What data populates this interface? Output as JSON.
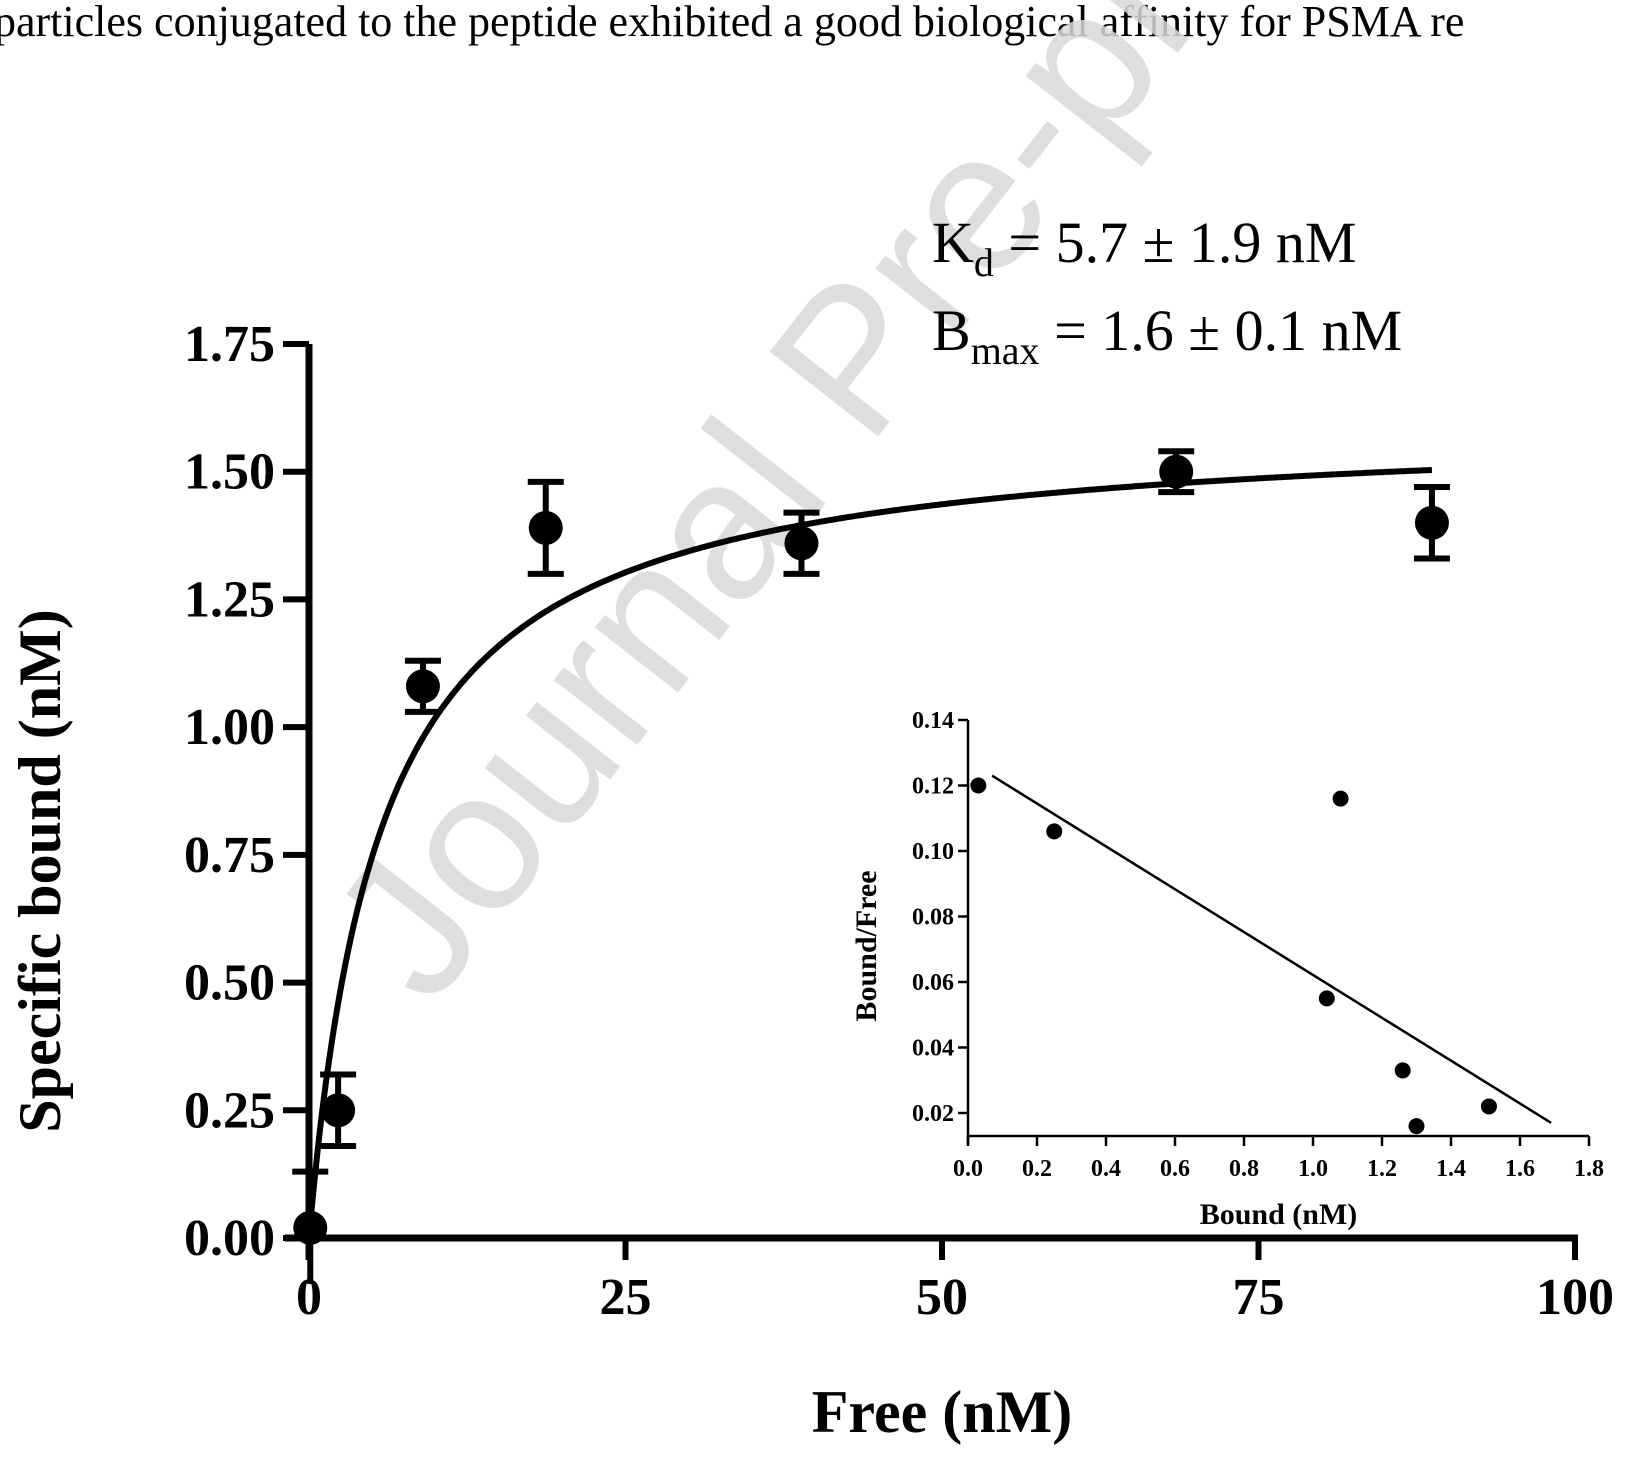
{
  "header_text": "particles conjugated to the peptide exhibited a good biological affinity for PSMA re",
  "watermark": "Journal Pre-proof",
  "annotations": {
    "kd_label": "K",
    "kd_sub": "d",
    "kd_value": " = 5.7 ± 1.9 nM",
    "bmax_label": "B",
    "bmax_sub": "max",
    "bmax_value": " = 1.6 ± 0.1 nM"
  },
  "chart_data": [
    {
      "type": "scatter",
      "name": "saturation-binding",
      "xlabel": "Free (nM)",
      "ylabel": "Specific bound (nM)",
      "xlim": [
        0,
        100
      ],
      "ylim": [
        0,
        1.75
      ],
      "xticks": [
        "0",
        "25",
        "50",
        "75",
        "100"
      ],
      "yticks": [
        "0.00",
        "0.25",
        "0.50",
        "0.75",
        "1.00",
        "1.25",
        "1.50",
        "1.75"
      ],
      "x": [
        0.1,
        2.3,
        9.0,
        18.7,
        38.9,
        68.5,
        88.7
      ],
      "y": [
        0.02,
        0.25,
        1.08,
        1.39,
        1.36,
        1.5,
        1.4
      ],
      "error": [
        0.11,
        0.07,
        0.05,
        0.09,
        0.06,
        0.04,
        0.07
      ],
      "fit": {
        "model": "one-site specific binding",
        "Kd": 5.7,
        "Bmax": 1.6,
        "x_range": [
          0,
          88.7
        ]
      }
    },
    {
      "type": "scatter",
      "name": "scatchard-inset",
      "xlabel": "Bound (nM)",
      "ylabel": "Bound/Free",
      "xlim": [
        0,
        1.8
      ],
      "ylim": [
        0.013,
        0.14
      ],
      "xticks": [
        "0.0",
        "0.2",
        "0.4",
        "0.6",
        "0.8",
        "1.0",
        "1.2",
        "1.4",
        "1.6",
        "1.8"
      ],
      "yticks": [
        "0.02",
        "0.04",
        "0.06",
        "0.08",
        "0.10",
        "0.12",
        "0.14"
      ],
      "x": [
        0.03,
        0.25,
        1.04,
        1.08,
        1.26,
        1.3,
        1.51
      ],
      "y": [
        0.12,
        0.106,
        0.055,
        0.116,
        0.033,
        0.016,
        0.022
      ],
      "fit": {
        "type": "linear",
        "x_range": [
          0.07,
          1.69
        ],
        "y_range": [
          0.123,
          0.017
        ]
      }
    }
  ]
}
